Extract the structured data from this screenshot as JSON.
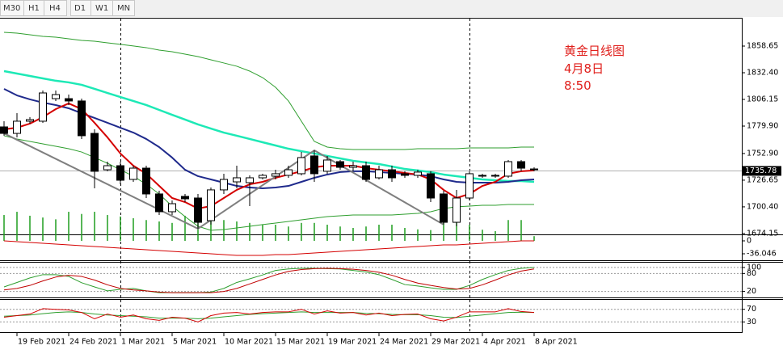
{
  "toolbar": {
    "tabs": [
      "M30",
      "H1",
      "H4",
      "D1",
      "W1",
      "MN"
    ]
  },
  "annotation": {
    "lines": [
      "黄金日线图",
      "4月8日",
      "8:50"
    ],
    "color": "#e0201c"
  },
  "chart_data": [
    {
      "type": "candlestick",
      "categories": [
        null,
        "19 Feb 2021",
        null,
        null,
        null,
        "24 Feb 2021",
        null,
        null,
        null,
        "1 Mar 2021",
        null,
        null,
        null,
        "5 Mar 2021",
        null,
        null,
        null,
        "10 Mar 2021",
        null,
        null,
        null,
        "15 Mar 2021",
        null,
        null,
        null,
        "19 Mar 2021",
        null,
        null,
        null,
        "24 Mar 2021",
        null,
        null,
        null,
        "29 Mar 2021",
        null,
        null,
        null,
        "4 Apr 2021",
        null,
        null,
        null,
        "8 Apr 2021"
      ],
      "open": [
        1779.1,
        1772.7,
        1784.7,
        1784.7,
        1806.9,
        1806.9,
        1804.6,
        1772.7,
        1736.9,
        1740.9,
        1727.4,
        1738.5,
        1713.1,
        1695.6,
        1710.7,
        1709.1,
        1686.8,
        1717.1,
        1725.0,
        1724.2,
        1729.0,
        1730.6,
        1731.4,
        1733.0,
        1750.5,
        1735.4,
        1744.9,
        1739.3,
        1740.9,
        1729.0,
        1736.9,
        1733.0,
        1731.4,
        1733.0,
        1713.1,
        1685.2,
        1709.1,
        1730.6,
        1730.6,
        1730.6,
        1744.9,
        1737.7
      ],
      "high": [
        1784.7,
        1792.6,
        1788.7,
        1814.9,
        1814.9,
        1810.9,
        1806.9,
        1776.7,
        1744.9,
        1744.9,
        1740.9,
        1740.9,
        1716.3,
        1706.7,
        1713.1,
        1713.1,
        1719.4,
        1733.0,
        1740.9,
        1731.4,
        1733.0,
        1736.9,
        1740.9,
        1754.4,
        1756.0,
        1750.5,
        1746.5,
        1744.9,
        1744.9,
        1740.9,
        1740.9,
        1735.4,
        1736.9,
        1735.4,
        1716.3,
        1717.1,
        1735.4,
        1733.0,
        1733.0,
        1746.5,
        1746.5,
        1739.3
      ],
      "low": [
        1770.4,
        1768.8,
        1782.3,
        1783.1,
        1804.6,
        1800.6,
        1767.2,
        1718.6,
        1735.4,
        1722.6,
        1725.0,
        1709.1,
        1692.4,
        1692.4,
        1705.1,
        1678.9,
        1682.9,
        1713.1,
        1718.6,
        1701.1,
        1727.4,
        1727.4,
        1729.0,
        1731.4,
        1725.0,
        1733.0,
        1736.9,
        1735.4,
        1725.0,
        1727.4,
        1725.0,
        1729.0,
        1729.0,
        1705.1,
        1682.9,
        1681.3,
        1706.7,
        1729.0,
        1729.0,
        1729.0,
        1735.4,
        1735.4
      ],
      "close": [
        1772.7,
        1784.7,
        1786.3,
        1812.5,
        1810.9,
        1804.6,
        1770.4,
        1735.4,
        1740.9,
        1726.6,
        1738.5,
        1713.1,
        1695.6,
        1703.5,
        1708.3,
        1685.2,
        1717.1,
        1727.4,
        1729.0,
        1729.0,
        1731.4,
        1733.0,
        1736.9,
        1748.9,
        1733.0,
        1746.5,
        1739.3,
        1740.9,
        1727.4,
        1736.9,
        1729.0,
        1731.4,
        1734.6,
        1709.1,
        1685.2,
        1709.1,
        1733.0,
        1731.4,
        1731.4,
        1744.9,
        1738.5,
        1736.9
      ],
      "up_color": "#ffffff",
      "down_color": "#000000",
      "lines": [
        {
          "color": "#2e9e2e",
          "width": 1,
          "values": [
            1872.2,
            1871.4,
            1869.8,
            1868.2,
            1867.4,
            1865.8,
            1864.2,
            1863.4,
            1861.8,
            1860.3,
            1858.7,
            1857.1,
            1854.7,
            1853.1,
            1850.7,
            1848.3,
            1845.1,
            1842.0,
            1838.8,
            1834.0,
            1827.6,
            1818.1,
            1804.6,
            1784.7,
            1764.8,
            1759.2,
            1757.6,
            1756.8,
            1756.8,
            1756.8,
            1756.8,
            1756.8,
            1757.6,
            1757.6,
            1757.6,
            1757.6,
            1758.4,
            1758.4,
            1758.4,
            1758.4,
            1759.2,
            1759.2
          ]
        },
        {
          "color": "#2e9e2e",
          "width": 1,
          "values": [
            1770.4,
            1767.2,
            1764.8,
            1762.4,
            1760.0,
            1757.6,
            1754.4,
            1748.9,
            1743.3,
            1736.9,
            1730.6,
            1722.6,
            1713.1,
            1701.1,
            1690.8,
            1681.3,
            1677.3,
            1678.1,
            1679.7,
            1681.3,
            1682.9,
            1684.4,
            1686.0,
            1687.6,
            1689.2,
            1690.8,
            1691.6,
            1692.4,
            1692.4,
            1692.4,
            1692.4,
            1693.2,
            1694.0,
            1695.6,
            1698.8,
            1700.4,
            1701.1,
            1701.9,
            1701.9,
            1702.7,
            1702.7,
            1702.7
          ]
        },
        {
          "color": "#1de9b6",
          "width": 2.5,
          "values": [
            1834.0,
            1831.6,
            1829.2,
            1826.8,
            1824.5,
            1822.9,
            1820.5,
            1816.5,
            1812.5,
            1808.5,
            1804.6,
            1800.6,
            1795.8,
            1791.0,
            1786.3,
            1781.5,
            1777.5,
            1773.5,
            1770.4,
            1767.2,
            1764.0,
            1760.8,
            1757.6,
            1755.2,
            1752.9,
            1750.5,
            1748.1,
            1745.7,
            1744.1,
            1742.5,
            1740.1,
            1737.7,
            1736.2,
            1734.6,
            1732.2,
            1730.6,
            1729.0,
            1727.4,
            1726.6,
            1725.8,
            1725.8,
            1725.0
          ]
        },
        {
          "color": "#1f2a8c",
          "width": 2,
          "values": [
            1816.5,
            1810.1,
            1806.2,
            1803.0,
            1800.6,
            1797.4,
            1792.6,
            1787.9,
            1783.1,
            1778.3,
            1773.5,
            1767.2,
            1759.2,
            1748.9,
            1736.9,
            1730.6,
            1727.4,
            1724.2,
            1721.0,
            1719.4,
            1718.6,
            1719.4,
            1721.0,
            1725.0,
            1729.0,
            1732.2,
            1734.6,
            1735.4,
            1735.4,
            1734.6,
            1733.8,
            1733.0,
            1732.2,
            1730.6,
            1727.4,
            1725.0,
            1724.2,
            1724.2,
            1724.2,
            1725.0,
            1726.6,
            1727.4
          ]
        },
        {
          "color": "#d40000",
          "width": 2,
          "values": [
            1776.7,
            1778.3,
            1782.3,
            1788.7,
            1796.6,
            1802.2,
            1796.6,
            1783.1,
            1768.8,
            1752.9,
            1740.9,
            1733.0,
            1721.0,
            1709.1,
            1705.1,
            1698.8,
            1701.1,
            1709.1,
            1717.1,
            1722.6,
            1725.0,
            1729.0,
            1732.2,
            1735.4,
            1739.3,
            1740.9,
            1740.9,
            1740.9,
            1738.5,
            1736.9,
            1735.4,
            1733.8,
            1732.2,
            1727.4,
            1717.1,
            1709.1,
            1713.1,
            1721.0,
            1725.0,
            1733.0,
            1735.4,
            1736.2
          ]
        }
      ],
      "zigzag": {
        "color": "#7f7f7f",
        "x": [
          0,
          15,
          24,
          34
        ],
        "values": [
          1772.7,
          1678.9,
          1756.0,
          1682.9
        ]
      },
      "current_price": 1735.78,
      "ylim": [
        1673.3,
        1884.1
      ],
      "yticks": [
        1858.65,
        {
          "value": 1832.4,
          "label": "1832.40"
        },
        1806.15,
        {
          "value": 1779.9,
          "label": "1779.90"
        },
        {
          "value": 1752.9,
          "label": "1752.90"
        },
        1726.65,
        {
          "value": 1700.4,
          "label": "1700.40"
        },
        1674.15
      ]
    },
    {
      "type": "histogram",
      "color": "#1f9e1f",
      "values": [
        72,
        81,
        70,
        65,
        60,
        81,
        75,
        81,
        72,
        68,
        63,
        58,
        54,
        50,
        70,
        72,
        63,
        58,
        54,
        50,
        45,
        45,
        40,
        50,
        50,
        45,
        40,
        36,
        40,
        45,
        45,
        36,
        32,
        30,
        63,
        58,
        45,
        31,
        27,
        58,
        58,
        13
      ],
      "signal": {
        "color": "#d40000",
        "values": [
          0,
          -2.3,
          -4.5,
          -6.8,
          -9.0,
          -11.3,
          -13.5,
          -15.8,
          -18.0,
          -20.3,
          -22.5,
          -24.8,
          -27.0,
          -29.3,
          -31.5,
          -33.8,
          -36.0,
          -38.3,
          -40.5,
          -40.5,
          -40.5,
          -38.3,
          -38.3,
          -36.0,
          -33.8,
          -31.5,
          -29.3,
          -27.0,
          -24.8,
          -22.5,
          -20.3,
          -18.0,
          -15.8,
          -13.5,
          -11.3,
          -11.3,
          -9.0,
          -6.8,
          -4.5,
          -2.3,
          0,
          0
        ]
      },
      "ylim": [
        -54.1,
        13.5
      ],
      "yticks": [
        0,
        -36.046
      ]
    },
    {
      "type": "line",
      "grid": true,
      "series": [
        {
          "color": "#2e9e2e",
          "values": [
            35,
            50,
            65,
            76,
            76,
            70,
            49,
            35,
            22,
            27,
            30,
            22,
            16,
            16,
            16,
            16,
            18,
            30,
            50,
            62,
            75,
            90,
            95,
            97,
            97,
            96,
            95,
            90,
            85,
            76,
            60,
            43,
            38,
            32,
            27,
            27,
            40,
            60,
            76,
            90,
            97,
            100
          ]
        },
        {
          "color": "#c00000",
          "values": [
            25,
            30,
            40,
            55,
            68,
            74,
            70,
            58,
            42,
            30,
            25,
            22,
            18,
            16,
            16,
            16,
            16,
            20,
            30,
            45,
            60,
            75,
            87,
            93,
            96,
            97,
            96,
            94,
            90,
            84,
            74,
            60,
            48,
            40,
            33,
            28,
            30,
            42,
            58,
            75,
            88,
            95
          ]
        }
      ],
      "ylim": [
        0,
        116
      ],
      "yticks": [
        100,
        80,
        20
      ]
    },
    {
      "type": "line",
      "grid": true,
      "series": [
        {
          "color": "#2e9e2e",
          "values": [
            48,
            50,
            52,
            56,
            60,
            62,
            60,
            55,
            52,
            50,
            48,
            46,
            42,
            42,
            42,
            40,
            42,
            46,
            50,
            54,
            56,
            58,
            60,
            62,
            60,
            60,
            60,
            60,
            57,
            56,
            54,
            53,
            53,
            50,
            45,
            44,
            48,
            52,
            56,
            60,
            61,
            60
          ]
        },
        {
          "color": "#d40000",
          "values": [
            45,
            50,
            55,
            72,
            70,
            68,
            60,
            40,
            55,
            45,
            52,
            40,
            35,
            45,
            42,
            30,
            50,
            58,
            60,
            55,
            60,
            62,
            62,
            70,
            55,
            65,
            58,
            60,
            52,
            58,
            50,
            54,
            55,
            40,
            33,
            45,
            62,
            62,
            62,
            72,
            63,
            60
          ]
        }
      ],
      "ylim": [
        0,
        100
      ],
      "yticks": [
        70,
        30
      ]
    }
  ]
}
